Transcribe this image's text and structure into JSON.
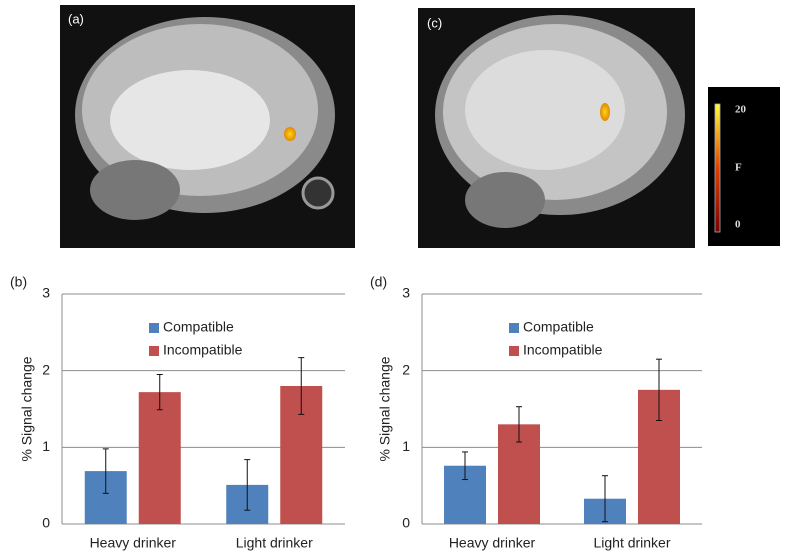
{
  "images": [
    {
      "label": "(a)"
    },
    {
      "label": "(c)"
    }
  ],
  "colorbar": {
    "ticks": [
      "20",
      "F",
      "0"
    ]
  },
  "chart_data": [
    {
      "type": "bar",
      "panel": "(b)",
      "ylabel": "% Signal change",
      "categories": [
        "Heavy drinker",
        "Light drinker"
      ],
      "series": [
        {
          "name": "Compatible",
          "color": "#4f81bd",
          "values": [
            0.69,
            0.51
          ],
          "errors": [
            0.29,
            0.33
          ]
        },
        {
          "name": "Incompatible",
          "color": "#c0504d",
          "values": [
            1.72,
            1.8
          ],
          "errors": [
            0.23,
            0.37
          ]
        }
      ],
      "ylim": [
        0,
        3
      ],
      "yticks": [
        0,
        1,
        2,
        3
      ],
      "grid": true
    },
    {
      "type": "bar",
      "panel": "(d)",
      "ylabel": "% Signal change",
      "categories": [
        "Heavy drinker",
        "Light drinker"
      ],
      "series": [
        {
          "name": "Compatible",
          "color": "#4f81bd",
          "values": [
            0.76,
            0.33
          ],
          "errors": [
            0.18,
            0.3
          ]
        },
        {
          "name": "Incompatible",
          "color": "#c0504d",
          "values": [
            1.3,
            1.75
          ],
          "errors": [
            0.23,
            0.4
          ]
        }
      ],
      "ylim": [
        0,
        3
      ],
      "yticks": [
        0,
        1,
        2,
        3
      ],
      "grid": true
    }
  ]
}
